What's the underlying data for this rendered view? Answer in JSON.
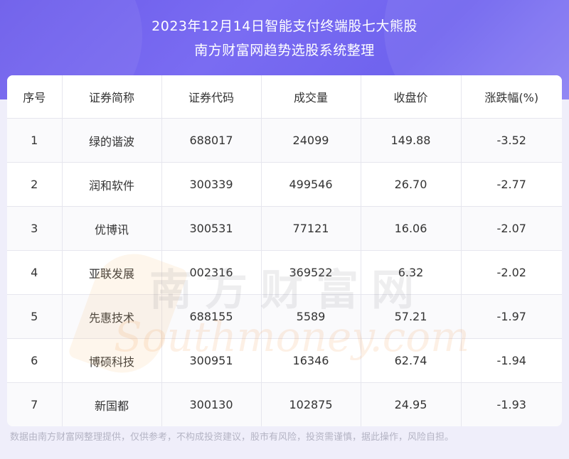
{
  "header": {
    "title_line1": "2023年12月14日智能支付终端股七大熊股",
    "title_line2": "南方财富网趋势选股系统整理"
  },
  "table": {
    "columns": [
      "序号",
      "证券简称",
      "证券代码",
      "成交量",
      "收盘价",
      "涨跌幅(%)"
    ],
    "rows": [
      [
        "1",
        "绿的谐波",
        "688017",
        "24099",
        "149.88",
        "-3.52"
      ],
      [
        "2",
        "润和软件",
        "300339",
        "499546",
        "26.70",
        "-2.77"
      ],
      [
        "3",
        "优博讯",
        "300531",
        "77121",
        "16.06",
        "-2.07"
      ],
      [
        "4",
        "亚联发展",
        "002316",
        "369522",
        "6.32",
        "-2.02"
      ],
      [
        "5",
        "先惠技术",
        "688155",
        "5589",
        "57.21",
        "-1.97"
      ],
      [
        "6",
        "博硕科技",
        "300951",
        "16346",
        "62.74",
        "-1.94"
      ],
      [
        "7",
        "新国都",
        "300130",
        "102875",
        "24.95",
        "-1.93"
      ]
    ]
  },
  "watermark": {
    "cn": "南方财富网",
    "en": "Southmoney.com"
  },
  "footer": {
    "disclaimer": "数据由南方财富网整理提供，仅供参考，不构成投资建议，股市有风险，投资需谨慎，据此操作，风险自担。"
  },
  "colors": {
    "banner": "#6f63ee",
    "page_bg": "#efeefa",
    "text": "#333333",
    "footer_text": "#b4b4c4"
  }
}
